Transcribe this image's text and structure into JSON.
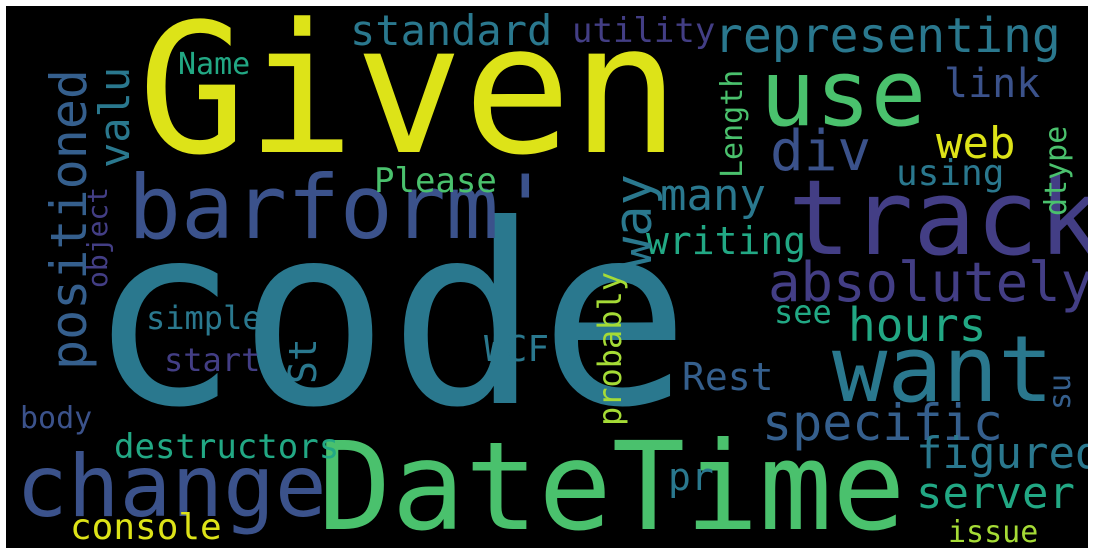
{
  "palette": {
    "background": "#000000",
    "yellow": "#dde318",
    "lime": "#a5db36",
    "green": "#4ac16d",
    "teal_light": "#22a884",
    "teal": "#2a788e",
    "blue": "#355f8d",
    "indigo": "#3b528b",
    "purple": "#433e85",
    "dark": "#482878"
  },
  "words": [
    {
      "id": "code",
      "text": "code",
      "color": "#2a788e"
    },
    {
      "id": "given",
      "text": "Given",
      "color": "#dde318"
    },
    {
      "id": "datetime",
      "text": "DateTime",
      "color": "#4ac16d"
    },
    {
      "id": "track",
      "text": "track",
      "color": "#433e85"
    },
    {
      "id": "barform",
      "text": "barform'",
      "color": "#3b528b"
    },
    {
      "id": "want",
      "text": "want",
      "color": "#2a788e"
    },
    {
      "id": "use",
      "text": "use",
      "color": "#4ac16d"
    },
    {
      "id": "change",
      "text": "change",
      "color": "#3b528b"
    },
    {
      "id": "absolutely",
      "text": "absolutely",
      "color": "#433e85"
    },
    {
      "id": "representing",
      "text": "representing",
      "color": "#2a788e"
    },
    {
      "id": "positioned",
      "text": "positioned",
      "color": "#355f8d"
    },
    {
      "id": "specific",
      "text": "specific",
      "color": "#355f8d"
    },
    {
      "id": "standard",
      "text": "standard",
      "color": "#2a788e"
    },
    {
      "id": "div",
      "text": "div",
      "color": "#3b528b"
    },
    {
      "id": "figured",
      "text": "figured",
      "color": "#2a788e"
    },
    {
      "id": "server",
      "text": "server",
      "color": "#22a884"
    },
    {
      "id": "hours",
      "text": "hours",
      "color": "#22a884"
    },
    {
      "id": "way",
      "text": "way",
      "color": "#2a788e"
    },
    {
      "id": "many",
      "text": "many",
      "color": "#2a788e"
    },
    {
      "id": "valu",
      "text": "valu",
      "color": "#2a788e"
    },
    {
      "id": "web",
      "text": "web",
      "color": "#dde318"
    },
    {
      "id": "console",
      "text": "console",
      "color": "#dde318"
    },
    {
      "id": "utility",
      "text": "utility",
      "color": "#433e85"
    },
    {
      "id": "link",
      "text": "link",
      "color": "#3b528b"
    },
    {
      "id": "writing",
      "text": "writing",
      "color": "#22a884"
    },
    {
      "id": "rest",
      "text": "Rest",
      "color": "#355f8d"
    },
    {
      "id": "destructors",
      "text": "destructors",
      "color": "#22a884"
    },
    {
      "id": "wcf",
      "text": "WCF",
      "color": "#2a788e"
    },
    {
      "id": "please",
      "text": "Please",
      "color": "#4ac16d"
    },
    {
      "id": "using",
      "text": "using",
      "color": "#2a788e"
    },
    {
      "id": "simple",
      "text": "simple",
      "color": "#2a788e"
    },
    {
      "id": "start",
      "text": "start",
      "color": "#433e85"
    },
    {
      "id": "name",
      "text": "Name",
      "color": "#22a884"
    },
    {
      "id": "length",
      "text": "Length",
      "color": "#4ac16d"
    },
    {
      "id": "dtype",
      "text": "dtype",
      "color": "#4ac16d"
    },
    {
      "id": "object",
      "text": "object",
      "color": "#433e85"
    },
    {
      "id": "probably",
      "text": "probably",
      "color": "#a5db36"
    },
    {
      "id": "st",
      "text": "St",
      "color": "#2a788e"
    },
    {
      "id": "see",
      "text": "see",
      "color": "#22a884"
    },
    {
      "id": "issue",
      "text": "issue",
      "color": "#a5db36"
    },
    {
      "id": "body",
      "text": "body",
      "color": "#3b528b"
    },
    {
      "id": "pr",
      "text": "pr",
      "color": "#2a788e"
    },
    {
      "id": "su",
      "text": "su",
      "color": "#355f8d"
    }
  ]
}
